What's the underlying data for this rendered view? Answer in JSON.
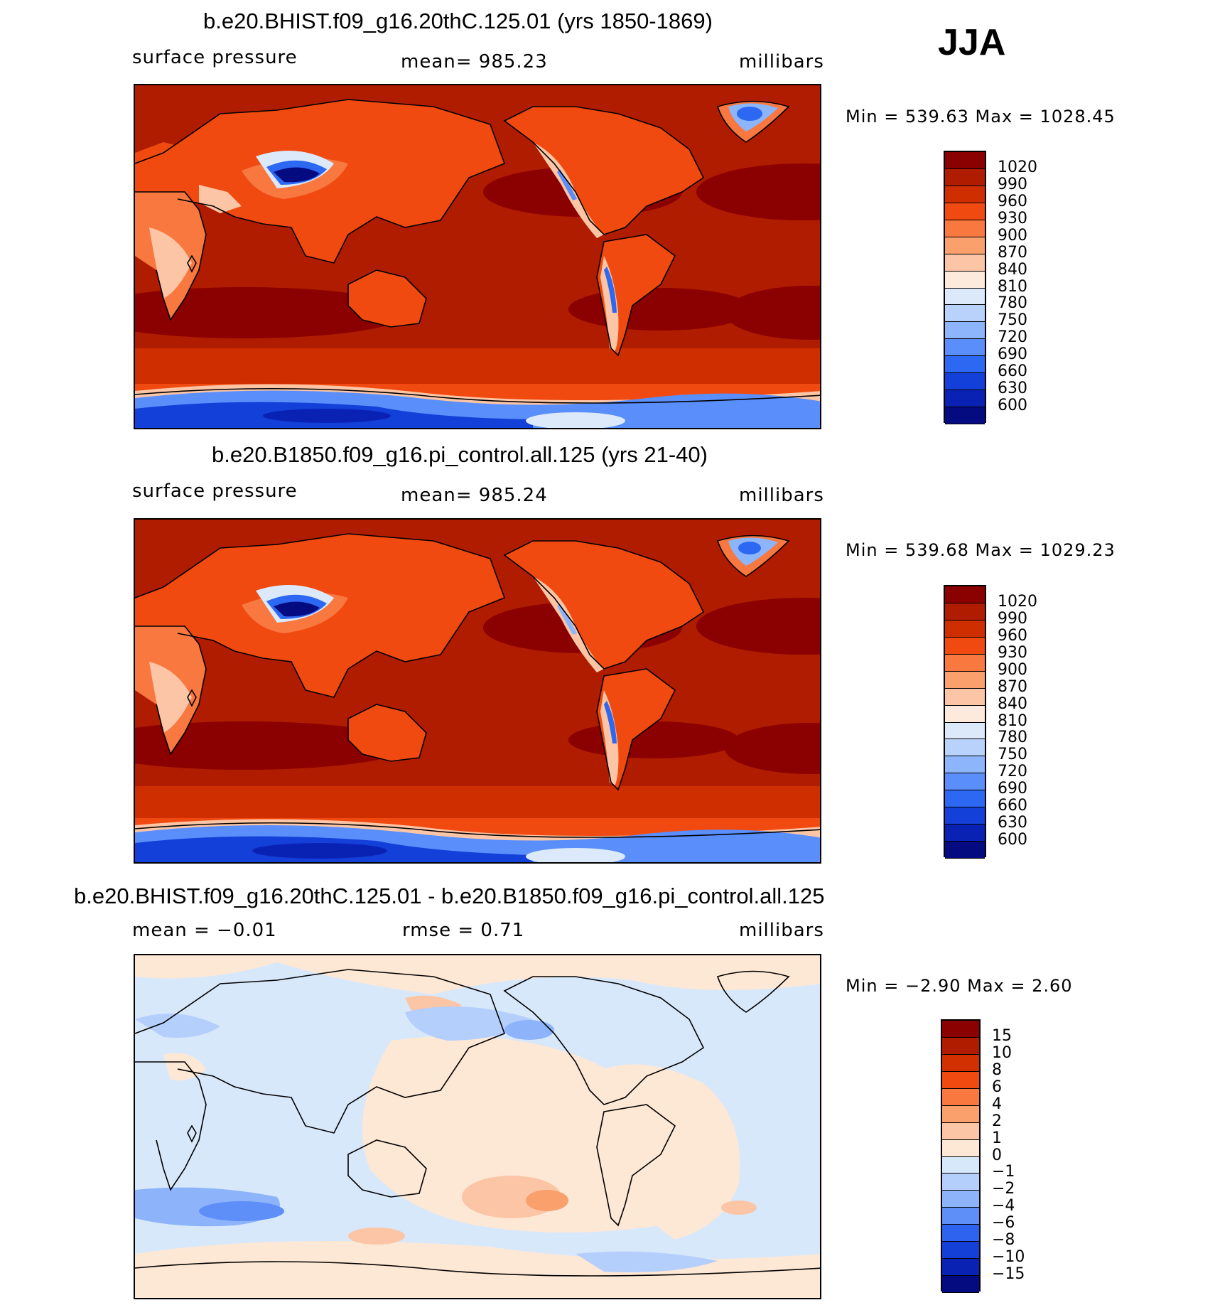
{
  "season": "JJA",
  "panels": [
    {
      "title": "b.e20.BHIST.f09_g16.20thC.125.01 (yrs 1850-1869)",
      "variable": "surface pressure",
      "stat": "mean=  985.23",
      "units": "millibars",
      "minmax": "Min  =  539.63  Max  =  1028.45",
      "colorbar_labels": [
        "1020",
        "990",
        "960",
        "930",
        "900",
        "870",
        "840",
        "810",
        "780",
        "750",
        "720",
        "690",
        "660",
        "630",
        "600"
      ]
    },
    {
      "title": "b.e20.B1850.f09_g16.pi_control.all.125 (yrs 21-40)",
      "variable": "surface pressure",
      "stat": "mean=  985.24",
      "units": "millibars",
      "minmax": "Min  =  539.68  Max  =  1029.23",
      "colorbar_labels": [
        "1020",
        "990",
        "960",
        "930",
        "900",
        "870",
        "840",
        "810",
        "780",
        "750",
        "720",
        "690",
        "660",
        "630",
        "600"
      ]
    },
    {
      "title": "b.e20.BHIST.f09_g16.20thC.125.01 - b.e20.B1850.f09_g16.pi_control.all.125",
      "stat_left": "mean  =    −0.01",
      "stat_mid": "rmse  =     0.71",
      "units": "millibars",
      "minmax": "Min  =    −2.90  Max  =     2.60",
      "colorbar_labels": [
        "15",
        "10",
        "8",
        "6",
        "4",
        "2",
        "1",
        "0",
        "−1",
        "−2",
        "−4",
        "−6",
        "−8",
        "−10",
        "−15"
      ]
    }
  ],
  "colors": {
    "abs_scale": [
      "#8b0000",
      "#b01c00",
      "#cf2f00",
      "#f04a10",
      "#f87840",
      "#f9a06c",
      "#fcc5a6",
      "#feeadc",
      "#dbe9fb",
      "#b8d2fb",
      "#8cb5fb",
      "#5a8efa",
      "#2c68f2",
      "#1340d8",
      "#0a22b4",
      "#040a80"
    ],
    "diff_scale": [
      "#8b0000",
      "#b01c00",
      "#d23000",
      "#f04a10",
      "#f87840",
      "#f9a06c",
      "#fcc5a6",
      "#fde7d5",
      "#d8e8fb",
      "#b4cffb",
      "#8db4fb",
      "#5e8ef8",
      "#2e63ef",
      "#1540d8",
      "#0a22b4",
      "#040a80"
    ]
  }
}
